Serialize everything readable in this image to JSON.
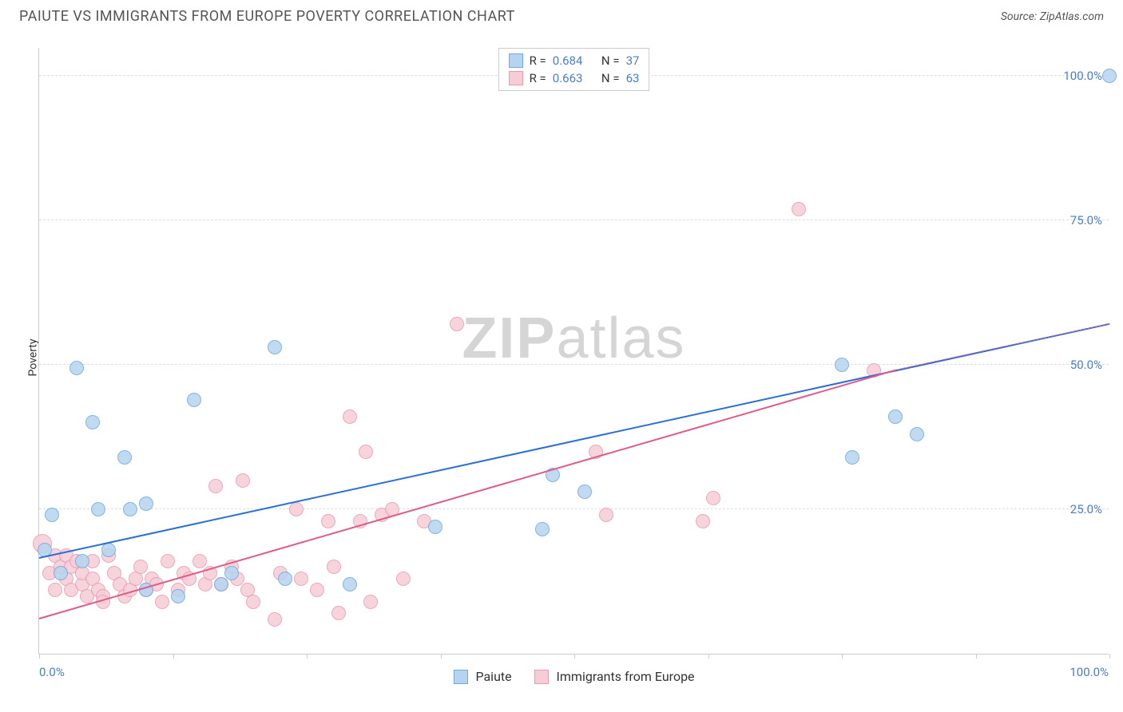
{
  "header": {
    "title": "PAIUTE VS IMMIGRANTS FROM EUROPE POVERTY CORRELATION CHART",
    "source": "Source: ZipAtlas.com"
  },
  "watermark": {
    "part1": "ZIP",
    "part2": "atlas"
  },
  "chart": {
    "type": "scatter",
    "y_label": "Poverty",
    "background_color": "#ffffff",
    "grid_color": "#dddddd",
    "axis_color": "#cccccc",
    "tick_label_color": "#4a7ec9",
    "tick_fontsize": 15,
    "label_fontsize": 14,
    "xlim": [
      0,
      100
    ],
    "ylim": [
      0,
      105
    ],
    "y_gridlines": [
      25,
      50,
      75,
      100
    ],
    "y_tick_labels": [
      "25.0%",
      "50.0%",
      "75.0%",
      "100.0%"
    ],
    "x_ticks": [
      0,
      12.5,
      25,
      37.5,
      50,
      62.5,
      75,
      87.5,
      100
    ],
    "x_tick_labels": {
      "0": "0.0%",
      "100": "100.0%"
    },
    "series": [
      {
        "name": "Paiute",
        "fill_color": "#b6d4f0",
        "stroke_color": "#6fa8dc",
        "trend_color": "#2a6fd6",
        "r_value": "0.684",
        "n_value": "37",
        "point_radius": 9,
        "trend": {
          "x1": 0,
          "y1": 16.5,
          "x2": 100,
          "y2": 57,
          "dash_from_x": 100
        },
        "points": [
          {
            "x": 0.5,
            "y": 18
          },
          {
            "x": 1.2,
            "y": 24
          },
          {
            "x": 2,
            "y": 14
          },
          {
            "x": 3.5,
            "y": 49.5
          },
          {
            "x": 4,
            "y": 16
          },
          {
            "x": 5,
            "y": 40
          },
          {
            "x": 5.5,
            "y": 25
          },
          {
            "x": 6.5,
            "y": 18
          },
          {
            "x": 8,
            "y": 34
          },
          {
            "x": 8.5,
            "y": 25
          },
          {
            "x": 10,
            "y": 26
          },
          {
            "x": 10,
            "y": 11
          },
          {
            "x": 13,
            "y": 10
          },
          {
            "x": 14.5,
            "y": 44
          },
          {
            "x": 17,
            "y": 12
          },
          {
            "x": 18,
            "y": 14
          },
          {
            "x": 22,
            "y": 53
          },
          {
            "x": 23,
            "y": 13
          },
          {
            "x": 29,
            "y": 12
          },
          {
            "x": 37,
            "y": 22
          },
          {
            "x": 47,
            "y": 21.5
          },
          {
            "x": 48,
            "y": 31
          },
          {
            "x": 51,
            "y": 28
          },
          {
            "x": 75,
            "y": 50
          },
          {
            "x": 76,
            "y": 34
          },
          {
            "x": 80,
            "y": 41
          },
          {
            "x": 82,
            "y": 38
          },
          {
            "x": 100,
            "y": 100
          }
        ]
      },
      {
        "name": "Immigants from Europe",
        "legend_label": "Immigrants from Europe",
        "fill_color": "#f6cdd7",
        "stroke_color": "#e89bb0",
        "trend_color": "#e05a87",
        "r_value": "0.663",
        "n_value": "63",
        "point_radius": 9,
        "trend": {
          "x1": 0,
          "y1": 6,
          "x2": 80,
          "y2": 49,
          "dash_from_x": 80,
          "dash_to_x": 100,
          "dash_to_y": 57
        },
        "points": [
          {
            "x": 0.3,
            "y": 19,
            "r": 12
          },
          {
            "x": 1,
            "y": 14
          },
          {
            "x": 1.5,
            "y": 17
          },
          {
            "x": 1.5,
            "y": 11
          },
          {
            "x": 2,
            "y": 15
          },
          {
            "x": 2.5,
            "y": 13
          },
          {
            "x": 2.5,
            "y": 17
          },
          {
            "x": 3,
            "y": 11
          },
          {
            "x": 3,
            "y": 15
          },
          {
            "x": 3.5,
            "y": 16
          },
          {
            "x": 4,
            "y": 12
          },
          {
            "x": 4,
            "y": 14
          },
          {
            "x": 4.5,
            "y": 10
          },
          {
            "x": 5,
            "y": 16
          },
          {
            "x": 5,
            "y": 13
          },
          {
            "x": 5.5,
            "y": 11
          },
          {
            "x": 6,
            "y": 10
          },
          {
            "x": 6,
            "y": 9
          },
          {
            "x": 6.5,
            "y": 17
          },
          {
            "x": 7,
            "y": 14
          },
          {
            "x": 7.5,
            "y": 12
          },
          {
            "x": 8,
            "y": 10
          },
          {
            "x": 8.5,
            "y": 11
          },
          {
            "x": 9,
            "y": 13
          },
          {
            "x": 9.5,
            "y": 15
          },
          {
            "x": 10,
            "y": 11
          },
          {
            "x": 10.5,
            "y": 13
          },
          {
            "x": 11,
            "y": 12
          },
          {
            "x": 11.5,
            "y": 9
          },
          {
            "x": 12,
            "y": 16
          },
          {
            "x": 13,
            "y": 11
          },
          {
            "x": 13.5,
            "y": 14
          },
          {
            "x": 14,
            "y": 13
          },
          {
            "x": 15,
            "y": 16
          },
          {
            "x": 15.5,
            "y": 12
          },
          {
            "x": 16,
            "y": 14
          },
          {
            "x": 16.5,
            "y": 29
          },
          {
            "x": 17,
            "y": 12
          },
          {
            "x": 18,
            "y": 15
          },
          {
            "x": 18.5,
            "y": 13
          },
          {
            "x": 19,
            "y": 30
          },
          {
            "x": 19.5,
            "y": 11
          },
          {
            "x": 20,
            "y": 9
          },
          {
            "x": 22,
            "y": 6
          },
          {
            "x": 22.5,
            "y": 14
          },
          {
            "x": 24,
            "y": 25
          },
          {
            "x": 24.5,
            "y": 13
          },
          {
            "x": 26,
            "y": 11
          },
          {
            "x": 27,
            "y": 23
          },
          {
            "x": 27.5,
            "y": 15
          },
          {
            "x": 28,
            "y": 7
          },
          {
            "x": 29,
            "y": 41
          },
          {
            "x": 30,
            "y": 23
          },
          {
            "x": 30.5,
            "y": 35
          },
          {
            "x": 31,
            "y": 9
          },
          {
            "x": 32,
            "y": 24
          },
          {
            "x": 33,
            "y": 25
          },
          {
            "x": 34,
            "y": 13
          },
          {
            "x": 36,
            "y": 23
          },
          {
            "x": 39,
            "y": 57
          },
          {
            "x": 52,
            "y": 35
          },
          {
            "x": 53,
            "y": 24
          },
          {
            "x": 62,
            "y": 23
          },
          {
            "x": 63,
            "y": 27
          },
          {
            "x": 71,
            "y": 77
          },
          {
            "x": 78,
            "y": 49
          }
        ]
      }
    ],
    "legend_top": {
      "r_label": "R =",
      "n_label": "N ="
    },
    "legend_bottom": {
      "items": [
        "Paiute",
        "Immigrants from Europe"
      ]
    }
  }
}
